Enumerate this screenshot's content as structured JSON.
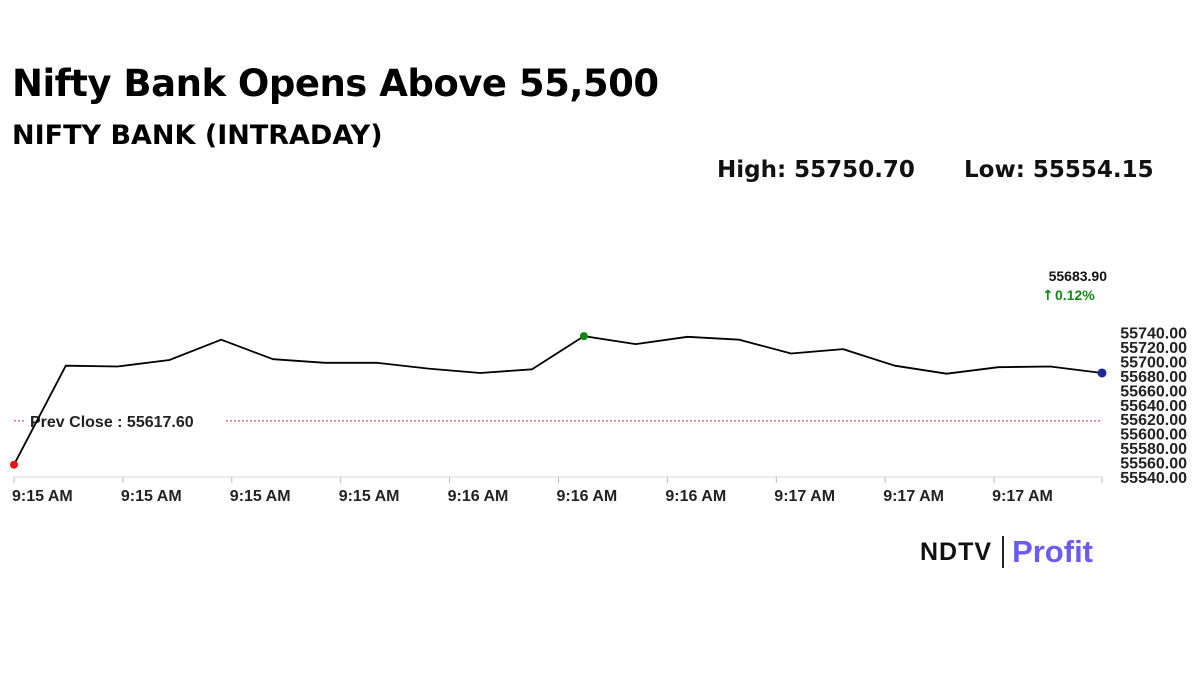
{
  "headline": "Nifty Bank Opens Above 55,500",
  "chart_data": {
    "type": "line",
    "title": "NIFTY BANK (INTRADAY)",
    "xlabel": "",
    "ylabel": "",
    "x_tick_labels": [
      "9:15 AM",
      "9:15 AM",
      "9:15 AM",
      "9:15 AM",
      "9:16 AM",
      "9:16 AM",
      "9:16 AM",
      "9:17 AM",
      "9:17 AM",
      "9:17 AM"
    ],
    "y_ticks": [
      55540,
      55560,
      55580,
      55600,
      55620,
      55640,
      55660,
      55680,
      55700,
      55720,
      55740
    ],
    "y_tick_labels": [
      "55540.00",
      "55560.00",
      "55580.00",
      "55600.00",
      "55620.00",
      "55640.00",
      "55660.00",
      "55680.00",
      "55700.00",
      "55720.00",
      "55740.00"
    ],
    "ylim": [
      55540,
      55750
    ],
    "grid": false,
    "series": [
      {
        "color": "#000000",
        "values": [
          55557,
          55694,
          55693,
          55702,
          55730,
          55703,
          55698,
          55698,
          55690,
          55684,
          55689,
          55735,
          55724,
          55734,
          55730,
          55711,
          55717,
          55694,
          55683,
          55692,
          55693,
          55684
        ]
      }
    ],
    "prev_close": {
      "label": "Prev Close : 55617.60",
      "value": 55617.6,
      "color": "#cc3333"
    },
    "high_label": "High: 55750.70",
    "low_label": "Low: 55554.15",
    "last_value_label": "55683.90",
    "change_label": "0.12%",
    "change_arrow": "↑",
    "change_color": "#118811",
    "marker_colors": {
      "start": "#ee1111",
      "high": "#118811",
      "last": "#1a2a9a"
    }
  },
  "logo": {
    "ndtv": "NDTV",
    "profit": "Profit"
  }
}
